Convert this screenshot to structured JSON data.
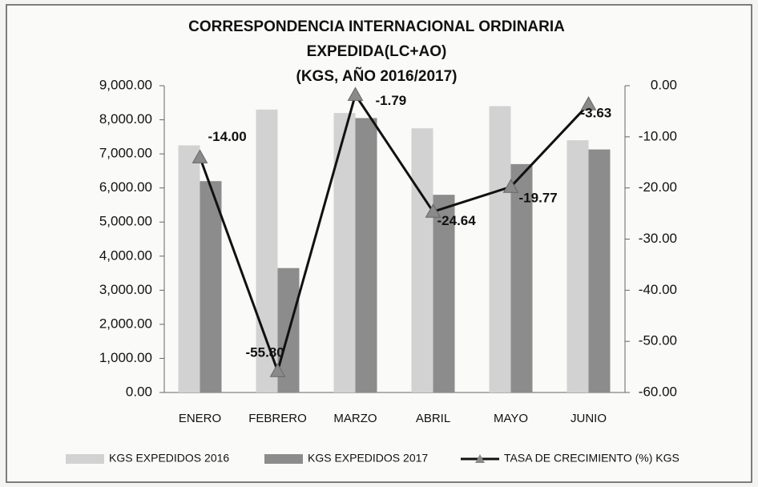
{
  "chart_data": {
    "type": "combo",
    "title": [
      "CORRESPONDENCIA INTERNACIONAL ORDINARIA",
      "EXPEDIDA(LC+AO)",
      "(KGS, AÑO 2016/2017)"
    ],
    "categories": [
      "ENERO",
      "FEBRERO",
      "MARZO",
      "ABRIL",
      "MAYO",
      "JUNIO"
    ],
    "series": [
      {
        "name": "KGS EXPEDIDOS 2016",
        "type": "bar",
        "color": "#d2d2d2",
        "values": [
          7250,
          8300,
          8200,
          7750,
          8400,
          7400
        ]
      },
      {
        "name": "KGS EXPEDIDOS 2017",
        "type": "bar",
        "color": "#8c8c8c",
        "values": [
          6200,
          3650,
          8050,
          5800,
          6700,
          7130
        ]
      },
      {
        "name": "TASA DE CRECIMIENTO (%) KGS",
        "type": "line",
        "axis": "y2",
        "color": "#111111",
        "marker_color": "#8a8a8a",
        "values": [
          -14.0,
          -55.8,
          -1.79,
          -24.64,
          -19.77,
          -3.63
        ],
        "value_labels": [
          "-14.00",
          "-55.80",
          "-1.79",
          "-24.64",
          "-19.77",
          "-3.63"
        ]
      }
    ],
    "ylim": [
      0,
      9000
    ],
    "yticks": [
      {
        "value": 0,
        "label": "0.00"
      },
      {
        "value": 1000,
        "label": "1,000.00"
      },
      {
        "value": 2000,
        "label": "2,000.00"
      },
      {
        "value": 3000,
        "label": "3,000.00"
      },
      {
        "value": 4000,
        "label": "4,000.00"
      },
      {
        "value": 5000,
        "label": "5,000.00"
      },
      {
        "value": 6000,
        "label": "6,000.00"
      },
      {
        "value": 7000,
        "label": "7,000.00"
      },
      {
        "value": 8000,
        "label": "8,000.00"
      },
      {
        "value": 9000,
        "label": "9,000.00"
      }
    ],
    "y2lim": [
      -60,
      0
    ],
    "y2ticks": [
      {
        "value": 0,
        "label": "0.00"
      },
      {
        "value": -10,
        "label": "-10.00"
      },
      {
        "value": -20,
        "label": "-20.00"
      },
      {
        "value": -30,
        "label": "-30.00"
      },
      {
        "value": -40,
        "label": "-40.00"
      },
      {
        "value": -50,
        "label": "-50.00"
      },
      {
        "value": -60,
        "label": "-60.00"
      }
    ],
    "legend": "bottom"
  }
}
